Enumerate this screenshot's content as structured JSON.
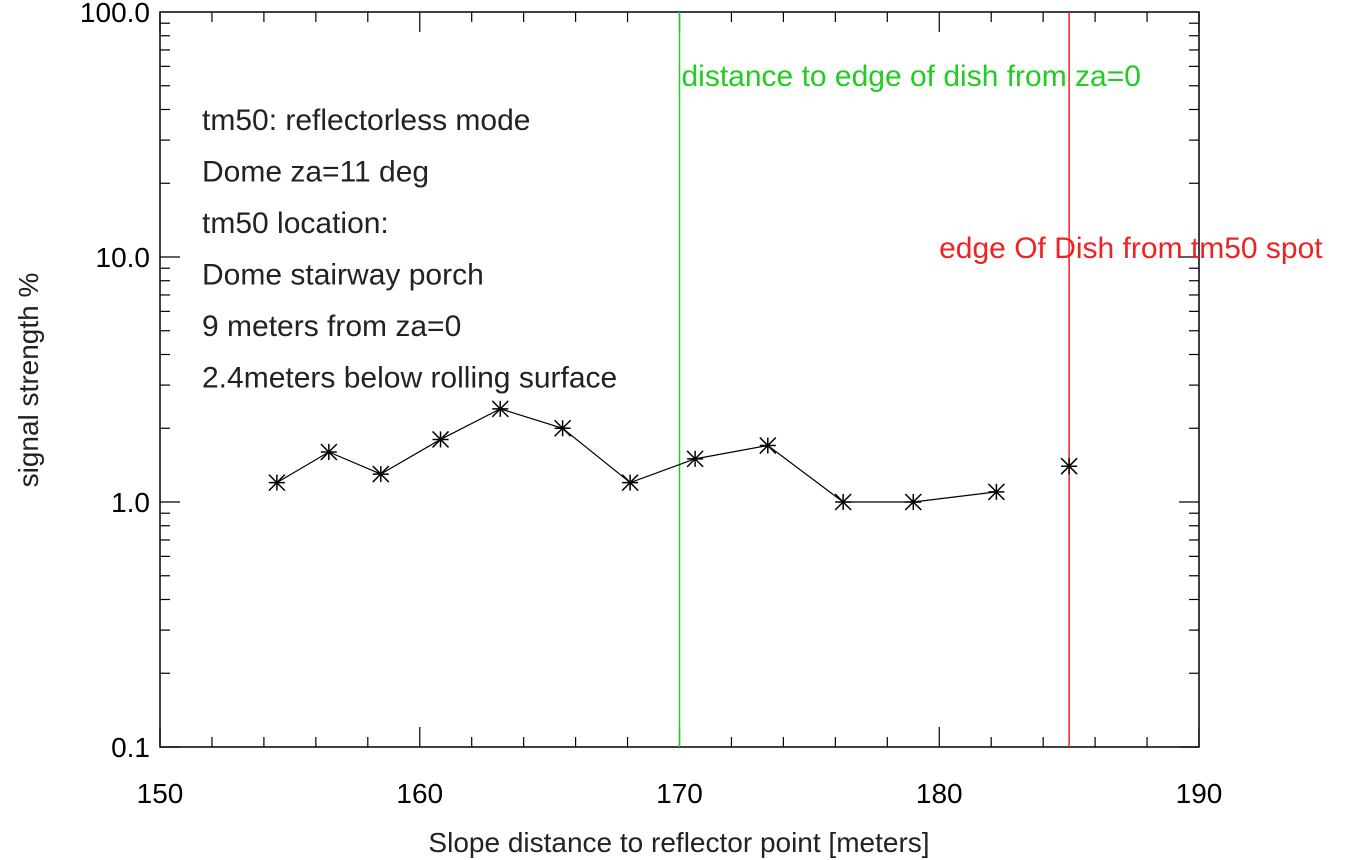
{
  "chart_data": {
    "type": "scatter",
    "xlabel": "Slope distance to reflector point [meters]",
    "ylabel": "signal strength %",
    "xlim": [
      150,
      190
    ],
    "ylim": [
      0.1,
      100.0
    ],
    "yscale": "log",
    "xticks": [
      "150",
      "160",
      "170",
      "180",
      "190"
    ],
    "yticks": [
      "0.1",
      "1.0",
      "10.0",
      "100.0"
    ],
    "grid": false,
    "series": [
      {
        "marker": "asterisk",
        "connected": true,
        "points": [
          {
            "x": 154.5,
            "y": 1.2
          },
          {
            "x": 156.5,
            "y": 1.6
          },
          {
            "x": 158.5,
            "y": 1.3
          },
          {
            "x": 160.8,
            "y": 1.8
          },
          {
            "x": 163.1,
            "y": 2.4
          },
          {
            "x": 165.5,
            "y": 2.0
          },
          {
            "x": 168.1,
            "y": 1.2
          },
          {
            "x": 170.6,
            "y": 1.5
          },
          {
            "x": 173.4,
            "y": 1.7
          },
          {
            "x": 176.3,
            "y": 1.0
          },
          {
            "x": 179.0,
            "y": 1.0
          },
          {
            "x": 182.2,
            "y": 1.1
          }
        ]
      },
      {
        "marker": "asterisk",
        "connected": false,
        "points": [
          {
            "x": 185.0,
            "y": 1.4
          }
        ]
      }
    ],
    "vlines": [
      {
        "x": 170,
        "color": "#22cc22",
        "label": "distance to edge of dish from za=0"
      },
      {
        "x": 185,
        "color": "#ee2222",
        "label": "edge Of Dish from tm50 spot"
      }
    ],
    "annotations": [
      "tm50: reflectorless mode",
      "Dome za=11 deg",
      "tm50 location:",
      "Dome stairway porch",
      "9 meters from za=0",
      "2.4meters below rolling surface"
    ]
  }
}
